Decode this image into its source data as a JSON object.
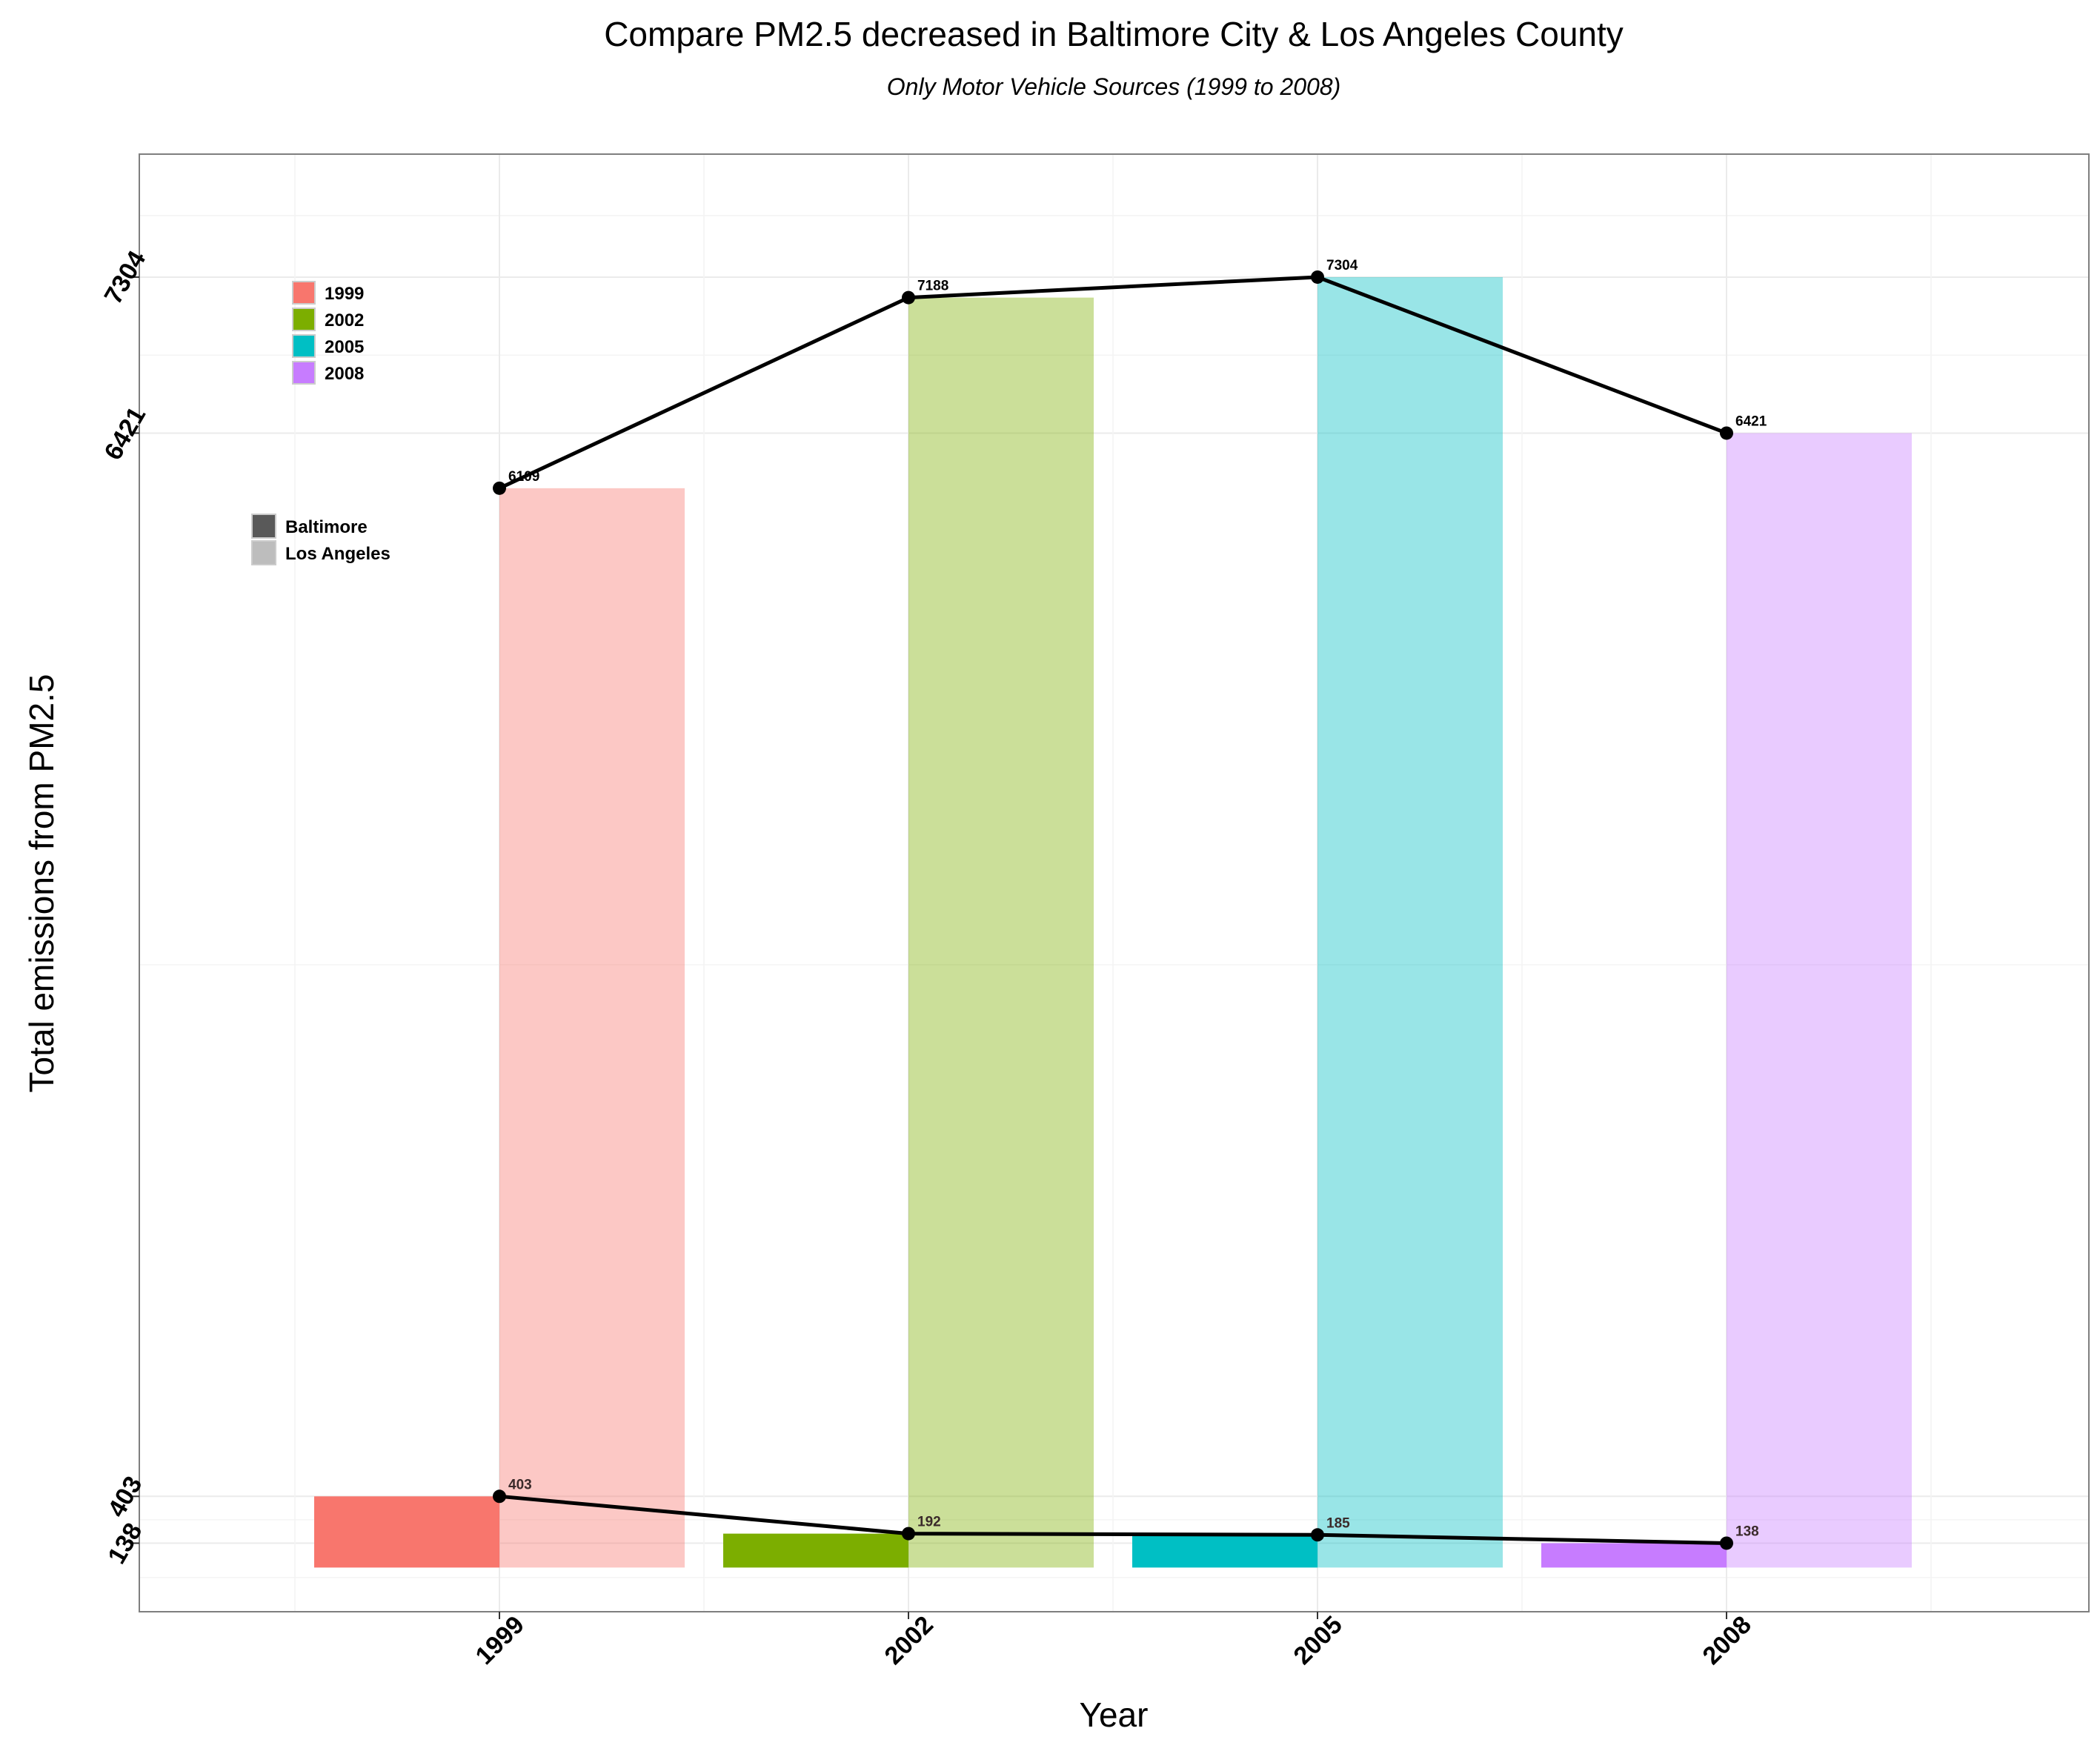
{
  "chart_data": {
    "type": "bar",
    "title": "Compare PM2.5 decreased in Baltimore City & Los Angeles County",
    "subtitle": "Only Motor Vehicle Sources (1999 to 2008)",
    "xlabel": "Year",
    "ylabel": "Total emissions from PM2.5",
    "categories": [
      "1999",
      "2002",
      "2005",
      "2008"
    ],
    "y_ticks": [
      138,
      403,
      6421,
      7304
    ],
    "ylim": [
      -250,
      8000
    ],
    "grid": true,
    "series": [
      {
        "name": "Baltimore",
        "values": [
          403,
          192,
          185,
          138
        ]
      },
      {
        "name": "Los Angeles",
        "values": [
          6109,
          7188,
          7304,
          6421
        ]
      }
    ],
    "data_labels": {
      "Baltimore": [
        "403",
        "192",
        "185",
        "138"
      ],
      "Los Angeles": [
        "6109",
        "7188",
        "7304",
        "6421"
      ]
    },
    "legend_year": {
      "placement": "top-left",
      "items": [
        {
          "label": "1999",
          "color": "#F8766D"
        },
        {
          "label": "2002",
          "color": "#7CAE00"
        },
        {
          "label": "2005",
          "color": "#00BFC4"
        },
        {
          "label": "2008",
          "color": "#C77CFF"
        }
      ]
    },
    "legend_city": {
      "placement": "top-left",
      "items": [
        {
          "label": "Baltimore",
          "color": "#595959"
        },
        {
          "label": "Los Angeles",
          "color": "#bdbdbd"
        }
      ]
    },
    "colors": {
      "line": "#000000",
      "panel_border": "#7f7f7f",
      "grid": "#ebebeb",
      "la_bar_opacity": 0.4
    }
  }
}
